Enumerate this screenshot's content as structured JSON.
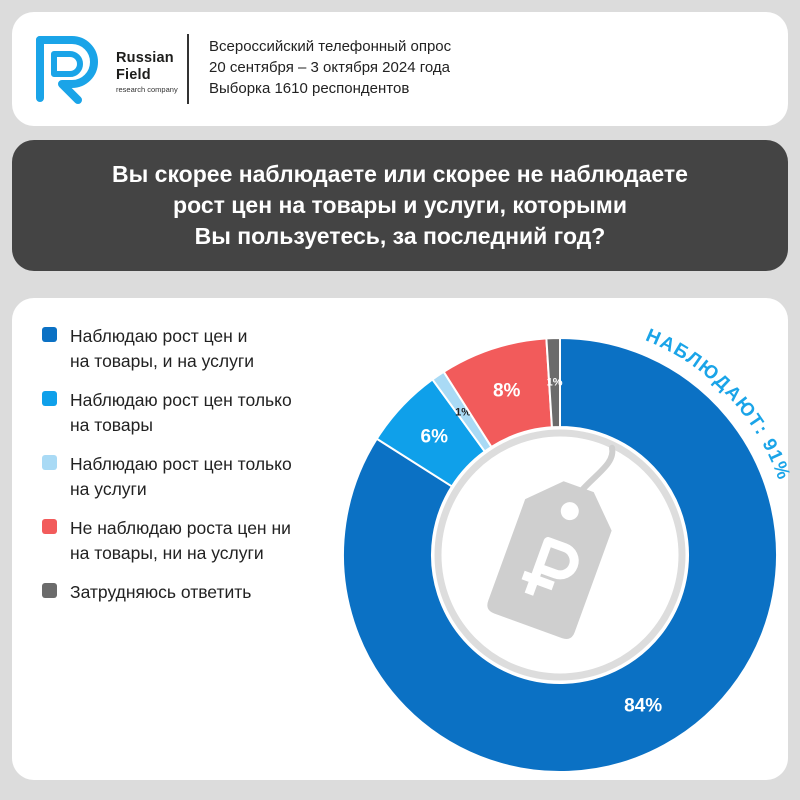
{
  "brand": {
    "name_line1": "Russian",
    "name_line2": "Field",
    "tagline": "research company",
    "color": "#1aa4e8"
  },
  "survey": {
    "line1": "Всероссийский телефонный опрос",
    "line2": "20 сентября – 3 октября 2024 года",
    "line3": "Выборка 1610 респондентов"
  },
  "question": {
    "line1": "Вы скорее наблюдаете или скорее не наблюдаете",
    "line2": "рост цен на товары и услуги, которыми",
    "line3": "Вы пользуетесь, за последний год?"
  },
  "chart_data": {
    "type": "pie",
    "categories": [
      "Наблюдаю рост цен и\nна товары, и на услуги",
      "Наблюдаю рост цен только\nна товары",
      "Наблюдаю рост цен только\nна услуги",
      "Не наблюдаю роста цен ни\nна товары, ни на услуги",
      "Затрудняюсь ответить"
    ],
    "values": [
      84,
      6,
      1,
      8,
      1
    ],
    "value_labels": [
      "84%",
      "6%",
      "1%",
      "8%",
      "1%"
    ],
    "colors": [
      "#0b71c4",
      "#0fa0ea",
      "#a9daf5",
      "#f25b5b",
      "#6b6b6b"
    ],
    "annotation": "НАБЛЮДАЮТ: 91%",
    "annotation_color": "#1aa4e8",
    "center_icon": "ruble-price-tag-icon",
    "legend_placement": "left"
  }
}
